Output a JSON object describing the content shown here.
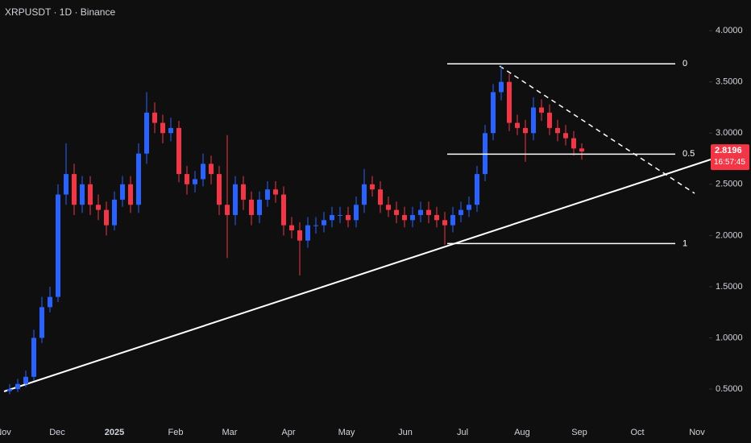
{
  "chart_data": {
    "type": "candlestick",
    "title": "XRPUSDT · 1D · Binance",
    "up_color": "#2962ff",
    "down_color": "#f23645",
    "ylim": [
      0.17,
      4.3
    ],
    "yticks": [
      {
        "value": 4,
        "label": "4.0000"
      },
      {
        "value": 3.5,
        "label": "3.5000"
      },
      {
        "value": 3,
        "label": "3.0000"
      },
      {
        "value": 2.5,
        "label": "2.5000"
      },
      {
        "value": 2,
        "label": "2.0000"
      },
      {
        "value": 1.5,
        "label": "1.5000"
      },
      {
        "value": 1,
        "label": "1.0000"
      },
      {
        "value": 0.5,
        "label": "0.5000"
      }
    ],
    "x_labels": [
      "Nov",
      "Dec",
      "2025",
      "Feb",
      "Mar",
      "Apr",
      "May",
      "Jun",
      "Jul",
      "Aug",
      "Sep",
      "Oct",
      "Nov"
    ],
    "open": [
      0.48,
      0.5,
      0.55,
      0.62,
      1.0,
      1.3,
      1.4,
      2.4,
      2.6,
      2.3,
      2.5,
      2.3,
      2.25,
      2.1,
      2.35,
      2.5,
      2.3,
      2.8,
      3.2,
      3.1,
      3.0,
      3.05,
      2.6,
      2.5,
      2.55,
      2.7,
      2.6,
      2.3,
      2.2,
      2.5,
      2.35,
      2.2,
      2.35,
      2.45,
      2.4,
      2.1,
      2.05,
      1.95,
      2.1,
      2.1,
      2.15,
      2.2,
      2.2,
      2.15,
      2.3,
      2.5,
      2.45,
      2.3,
      2.25,
      2.2,
      2.15,
      2.2,
      2.25,
      2.2,
      2.15,
      2.1,
      2.2,
      2.25,
      2.3,
      2.6,
      3.0,
      3.4,
      3.5,
      3.1,
      3.05,
      3.0,
      3.25,
      3.2,
      3.05,
      3.0,
      2.95,
      2.85
    ],
    "high": [
      0.55,
      0.6,
      0.68,
      1.08,
      1.4,
      1.5,
      2.5,
      2.9,
      2.7,
      2.58,
      2.58,
      2.4,
      2.33,
      2.43,
      2.58,
      2.58,
      2.9,
      3.4,
      3.3,
      3.18,
      3.15,
      3.12,
      2.68,
      2.63,
      2.8,
      2.78,
      2.68,
      2.98,
      2.58,
      2.58,
      2.43,
      2.43,
      2.53,
      2.53,
      2.48,
      2.18,
      2.13,
      2.18,
      2.18,
      2.23,
      2.28,
      2.28,
      2.28,
      2.38,
      2.65,
      2.58,
      2.53,
      2.38,
      2.33,
      2.28,
      2.28,
      2.33,
      2.33,
      2.28,
      2.23,
      2.28,
      2.33,
      2.38,
      2.68,
      3.08,
      3.48,
      3.66,
      3.58,
      3.18,
      3.13,
      3.35,
      3.33,
      3.28,
      3.13,
      3.08,
      3.02,
      2.9
    ],
    "low": [
      0.45,
      0.47,
      0.52,
      0.58,
      0.95,
      1.25,
      1.35,
      2.3,
      2.2,
      2.22,
      2.2,
      2.15,
      2.0,
      2.05,
      2.28,
      2.22,
      2.22,
      2.7,
      3.0,
      2.9,
      2.92,
      2.52,
      2.4,
      2.42,
      2.48,
      2.5,
      2.2,
      1.78,
      2.1,
      2.25,
      2.1,
      2.12,
      2.28,
      2.32,
      2.0,
      1.97,
      1.61,
      1.88,
      2.02,
      2.03,
      2.08,
      2.12,
      2.08,
      2.08,
      2.22,
      2.38,
      2.22,
      2.18,
      2.12,
      2.08,
      2.08,
      2.13,
      2.12,
      2.08,
      1.91,
      2.03,
      2.13,
      2.18,
      2.23,
      2.53,
      2.93,
      3.32,
      3.02,
      2.98,
      2.72,
      2.93,
      3.12,
      2.98,
      2.92,
      2.88,
      2.78,
      2.74
    ],
    "close": [
      0.5,
      0.55,
      0.62,
      1.0,
      1.3,
      1.4,
      2.4,
      2.6,
      2.3,
      2.5,
      2.3,
      2.25,
      2.1,
      2.35,
      2.5,
      2.3,
      2.8,
      3.2,
      3.1,
      3.0,
      3.05,
      2.6,
      2.5,
      2.55,
      2.7,
      2.6,
      2.3,
      2.2,
      2.5,
      2.35,
      2.2,
      2.35,
      2.45,
      2.4,
      2.1,
      2.05,
      1.95,
      2.1,
      2.1,
      2.15,
      2.2,
      2.2,
      2.15,
      2.3,
      2.5,
      2.45,
      2.3,
      2.25,
      2.2,
      2.15,
      2.2,
      2.25,
      2.2,
      2.15,
      2.1,
      2.2,
      2.25,
      2.3,
      2.6,
      3.0,
      3.4,
      3.5,
      3.1,
      3.05,
      3.0,
      3.25,
      3.2,
      3.05,
      3.0,
      2.95,
      2.85,
      2.82
    ],
    "fib_levels": [
      {
        "label": "0",
        "value": 3.677
      },
      {
        "label": "0.5",
        "value": 2.795
      },
      {
        "label": "1",
        "value": 1.921
      }
    ],
    "last_price": {
      "value": 2.8196,
      "label": "2.8196",
      "countdown": "16:57:45"
    }
  }
}
